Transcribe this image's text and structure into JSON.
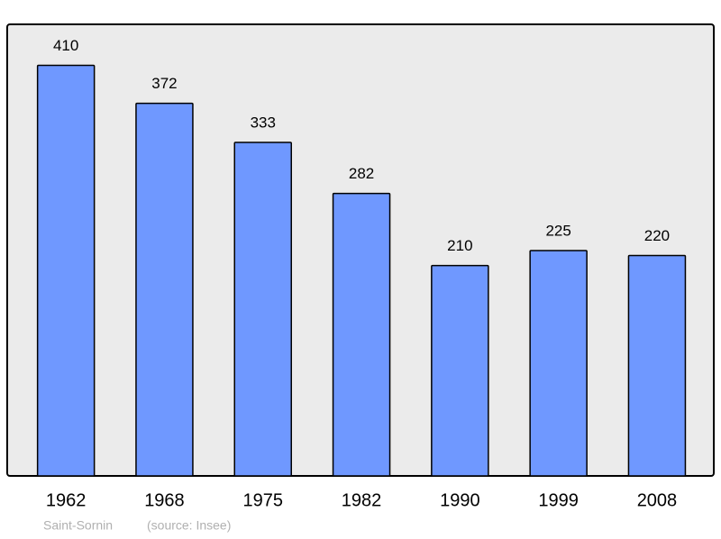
{
  "chart_data": {
    "type": "bar",
    "categories": [
      "1962",
      "1968",
      "1975",
      "1982",
      "1990",
      "1999",
      "2008"
    ],
    "values": [
      410,
      372,
      333,
      282,
      210,
      225,
      220
    ],
    "color": "#6f98ff",
    "ylim": [
      0,
      450
    ],
    "place": "Saint-Sornin",
    "source": "(source: Insee)"
  }
}
